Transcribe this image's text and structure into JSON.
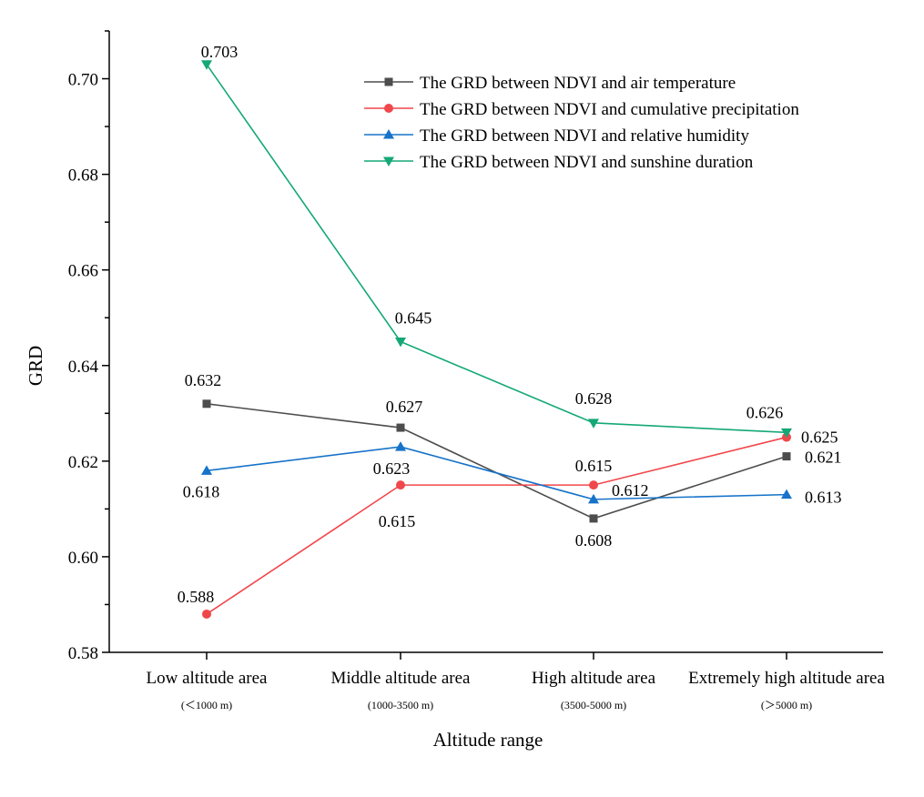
{
  "chart_data": {
    "type": "line",
    "xlabel": "Altitude range",
    "ylabel": "GRD",
    "ylim": [
      0.58,
      0.71
    ],
    "yticks": [
      "0.58",
      "0.60",
      "0.62",
      "0.64",
      "0.66",
      "0.68",
      "0.70"
    ],
    "categories": [
      "Low altitude area",
      "Middle altitude area",
      "High altitude area",
      "Extremely high altitude area"
    ],
    "category_sublabels": [
      "(＜1000 m)",
      "(1000-3500 m)",
      "(3500-5000 m)",
      "(＞5000 m)"
    ],
    "legend_position": "top-right",
    "series": [
      {
        "name": "The GRD between NDVI and air temperature",
        "color": "#4d4d4d",
        "marker": "square",
        "values": [
          0.632,
          0.627,
          0.608,
          0.621
        ],
        "labels": [
          "0.632",
          "0.627",
          "0.608",
          "0.621"
        ]
      },
      {
        "name": "The GRD between NDVI and cumulative precipitation",
        "color": "#f0474b",
        "marker": "circle",
        "values": [
          0.588,
          0.615,
          0.615,
          0.625
        ],
        "labels": [
          "0.588",
          "0.615",
          "0.615",
          "0.625"
        ]
      },
      {
        "name": "The GRD between NDVI and relative humidity",
        "color": "#1673c9",
        "marker": "triangle-up",
        "values": [
          0.618,
          0.623,
          0.612,
          0.613
        ],
        "labels": [
          "0.618",
          "0.623",
          "0.612",
          "0.613"
        ]
      },
      {
        "name": "The GRD between NDVI and sunshine duration",
        "color": "#14a876",
        "marker": "triangle-down",
        "values": [
          0.703,
          0.645,
          0.628,
          0.626
        ],
        "labels": [
          "0.703",
          "0.645",
          "0.628",
          "0.626"
        ]
      }
    ]
  }
}
